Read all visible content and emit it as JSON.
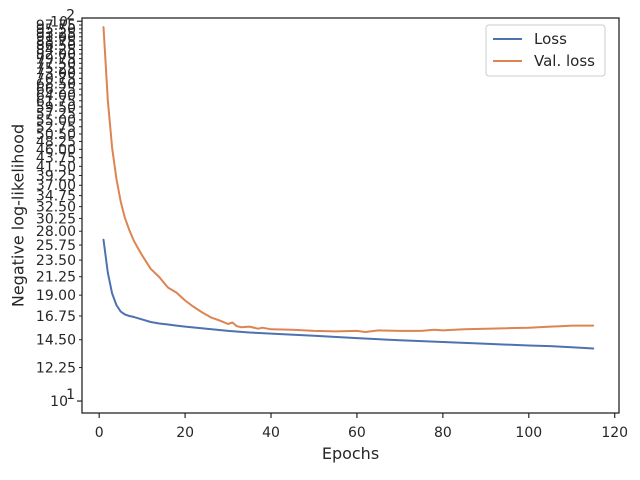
{
  "chart_data": {
    "type": "line",
    "xlabel": "Epochs",
    "ylabel": "Negative log-likelihood",
    "xlim": [
      -4,
      121
    ],
    "ylim": [
      9.3,
      102
    ],
    "yscale": "log",
    "xticks": [
      0,
      20,
      40,
      60,
      80,
      100,
      120
    ],
    "xtick_labels": [
      "0",
      "20",
      "40",
      "60",
      "80",
      "100",
      "120"
    ],
    "yticks": [
      12.25,
      14.5,
      16.75,
      19.0,
      21.25,
      23.5,
      25.75,
      28.0,
      30.25,
      32.5,
      34.75,
      37.0,
      39.25,
      41.5,
      43.75,
      46.0,
      48.25,
      50.5,
      52.75,
      55.0,
      57.25,
      59.5,
      61.75,
      64.0,
      66.25,
      68.5,
      70.75,
      73.0,
      75.25,
      77.5,
      79.75,
      82.0,
      84.25,
      86.5,
      88.75,
      91.0,
      93.25,
      95.5,
      97.75
    ],
    "ytick_labels": [
      "12.25",
      "14.50",
      "16.75",
      "19.00",
      "21.25",
      "23.50",
      "25.75",
      "28.00",
      "30.25",
      "32.50",
      "34.75",
      "37.00",
      "39.25",
      "41.50",
      "43.75",
      "46.00",
      "48.25",
      "50.50",
      "52.75",
      "55.00",
      "57.25",
      "59.50",
      "61.75",
      "64.00",
      "66.25",
      "68.50",
      "70.75",
      "73.00",
      "75.25",
      "77.50",
      "79.75",
      "82.00",
      "84.25",
      "86.50",
      "88.75",
      "91.00",
      "93.25",
      "95.50",
      "97.75"
    ],
    "ymajor": [
      {
        "value": 10,
        "base": "10",
        "exp": "1"
      },
      {
        "value": 100,
        "base": "10",
        "exp": "2"
      }
    ],
    "legend": "top-right",
    "grid": false,
    "series": [
      {
        "name": "Loss",
        "color": "#4c72b0",
        "x": [
          1,
          2,
          3,
          4,
          5,
          6,
          7,
          8,
          10,
          12,
          14,
          16,
          18,
          20,
          25,
          30,
          35,
          40,
          50,
          60,
          70,
          80,
          90,
          100,
          105,
          110,
          115
        ],
        "y": [
          26.6,
          21.8,
          19.2,
          17.9,
          17.2,
          16.9,
          16.75,
          16.65,
          16.4,
          16.15,
          16.0,
          15.9,
          15.8,
          15.7,
          15.5,
          15.3,
          15.15,
          15.05,
          14.85,
          14.65,
          14.45,
          14.3,
          14.15,
          14.0,
          13.95,
          13.85,
          13.75
        ]
      },
      {
        "name": "Val. loss",
        "color": "#dd8452",
        "x": [
          1,
          2,
          3,
          4,
          5,
          6,
          7,
          8,
          9,
          10,
          12,
          14,
          16,
          18,
          20,
          22,
          24,
          26,
          28,
          30,
          31,
          32,
          33,
          35,
          37,
          38,
          40,
          45,
          50,
          55,
          60,
          62,
          65,
          70,
          75,
          78,
          80,
          85,
          90,
          95,
          100,
          105,
          108,
          110,
          115
        ],
        "y": [
          96.5,
          62.0,
          46.5,
          38.5,
          33.5,
          30.3,
          28.2,
          26.5,
          25.3,
          24.2,
          22.3,
          21.2,
          19.9,
          19.3,
          18.4,
          17.7,
          17.1,
          16.6,
          16.3,
          15.95,
          16.1,
          15.75,
          15.65,
          15.7,
          15.5,
          15.6,
          15.45,
          15.4,
          15.3,
          15.25,
          15.3,
          15.2,
          15.35,
          15.3,
          15.3,
          15.4,
          15.35,
          15.45,
          15.5,
          15.55,
          15.6,
          15.7,
          15.75,
          15.8,
          15.8
        ]
      }
    ]
  }
}
